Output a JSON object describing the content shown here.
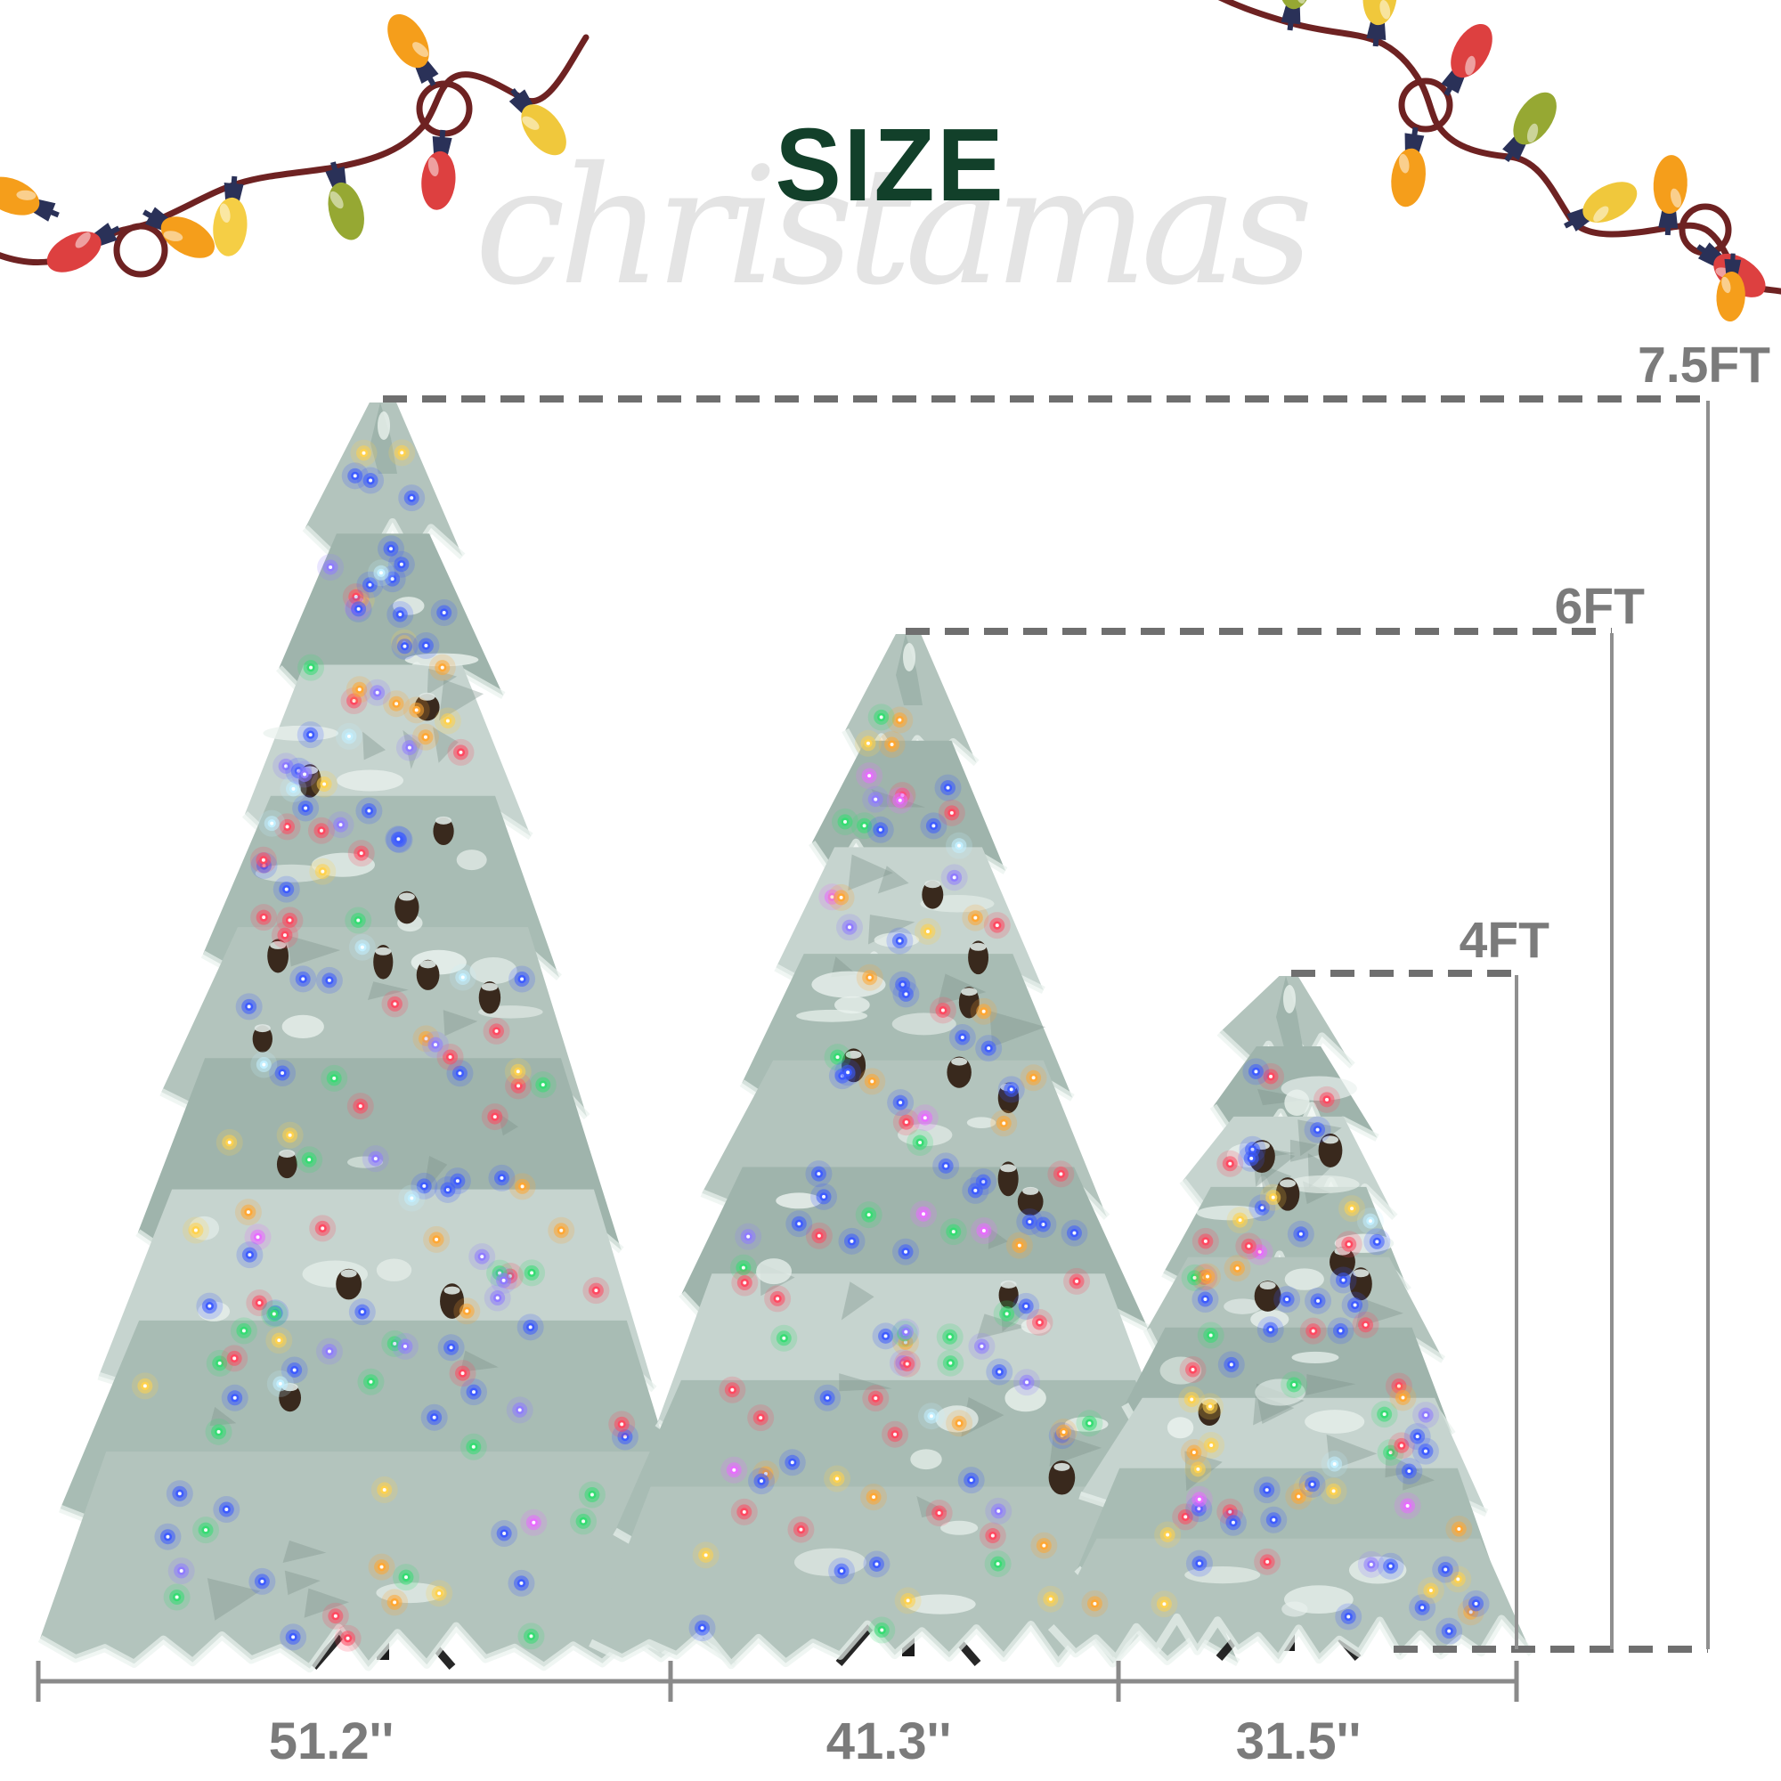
{
  "title": {
    "text": "SIZE",
    "color": "#12402A"
  },
  "watermark": {
    "text": "christamas",
    "color": "#E4E4E4"
  },
  "measurements": {
    "heights": [
      {
        "id": "7-5ft",
        "label": "7.5FT"
      },
      {
        "id": "6ft",
        "label": "6FT"
      },
      {
        "id": "4ft",
        "label": "4FT"
      }
    ],
    "widths": [
      {
        "id": "w-51-2",
        "label": "51.2''"
      },
      {
        "id": "w-41-3",
        "label": "41.3''"
      },
      {
        "id": "w-31-5",
        "label": "31.5''"
      }
    ],
    "text_color": "#7B7B7B",
    "dash_color": "#6F6F6F",
    "line_color": "#8F8F8F"
  },
  "decorations": {
    "wire_color": "#6E2222",
    "bulb_cap_color": "#2A3158",
    "bulb_colors": {
      "orange": "#F59E1B",
      "gold": "#F0C83C",
      "red": "#DD4040",
      "green": "#96A833",
      "yellow": "#F5CE45"
    },
    "tree_light_palette": [
      "#3D5BFF",
      "#35DC72",
      "#FF4860",
      "#FFA733",
      "#FFD24D",
      "#8F7BFF",
      "#E86CFF",
      "#C2EFFF"
    ],
    "tree_body_colors": [
      "#B3C4BD",
      "#9FB4AC",
      "#C6D4CF",
      "#A8BCB4"
    ],
    "tree_snow_color": "#EAF2EE",
    "tree_shadow_color": "#7D948B",
    "pinecone_color": "#39291D",
    "stand_color": "#1B1B1B"
  }
}
